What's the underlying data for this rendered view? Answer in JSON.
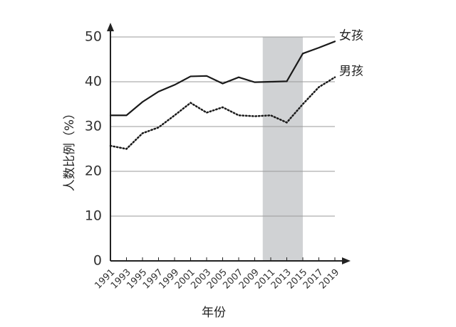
{
  "chart_data": {
    "type": "line",
    "x": [
      1991,
      1993,
      1995,
      1997,
      1999,
      2001,
      2003,
      2005,
      2007,
      2009,
      2011,
      2013,
      2015,
      2017,
      2019
    ],
    "series": [
      {
        "name": "女孩",
        "color": "#1a1a1a",
        "dash": "solid",
        "values": [
          32.5,
          32.5,
          35.5,
          37.8,
          39.3,
          41.2,
          41.3,
          39.6,
          41.0,
          39.9,
          40.0,
          40.1,
          46.3,
          47.6,
          49.0
        ]
      },
      {
        "name": "男孩",
        "color": "#1a1a1a",
        "dash": "dotted",
        "values": [
          25.7,
          25.0,
          28.5,
          29.8,
          32.5,
          35.3,
          33.1,
          34.3,
          32.5,
          32.3,
          32.5,
          30.9,
          35.0,
          38.8,
          41.0
        ]
      }
    ],
    "xlim": [
      1991,
      2019
    ],
    "xticks": [
      1991,
      1993,
      1995,
      1997,
      1999,
      2001,
      2003,
      2005,
      2007,
      2009,
      2011,
      2013,
      2015,
      2017,
      2019
    ],
    "ylim": [
      0,
      50
    ],
    "yticks": [
      0,
      10,
      20,
      30,
      40,
      50
    ],
    "grid": true,
    "highlight_x": [
      2010,
      2015
    ],
    "highlight_color": "#d0d2d4",
    "ylabel": "人数比例（%）",
    "xlabel": "年份"
  }
}
